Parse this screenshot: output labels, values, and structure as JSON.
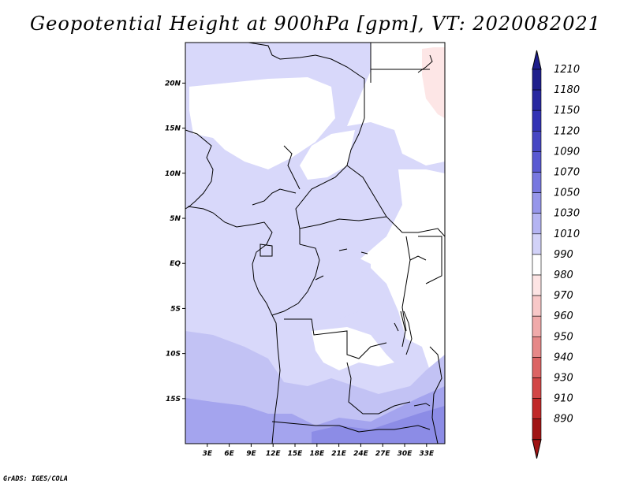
{
  "title": "Geopotential Height at 900hPa [gpm], VT: 2020082021",
  "credit": "GrADS: IGES/COLA",
  "map": {
    "lon_range": [
      0,
      35.5
    ],
    "lat_range": [
      -20,
      24.5
    ],
    "x_ticks": [
      {
        "value": 3,
        "label": "3E"
      },
      {
        "value": 6,
        "label": "6E"
      },
      {
        "value": 9,
        "label": "9E"
      },
      {
        "value": 12,
        "label": "12E"
      },
      {
        "value": 15,
        "label": "15E"
      },
      {
        "value": 18,
        "label": "18E"
      },
      {
        "value": 21,
        "label": "21E"
      },
      {
        "value": 24,
        "label": "24E"
      },
      {
        "value": 27,
        "label": "27E"
      },
      {
        "value": 30,
        "label": "30E"
      },
      {
        "value": 33,
        "label": "33E"
      }
    ],
    "y_ticks": [
      {
        "value": 20,
        "label": "20N"
      },
      {
        "value": 15,
        "label": "15N"
      },
      {
        "value": 10,
        "label": "10N"
      },
      {
        "value": 5,
        "label": "5N"
      },
      {
        "value": 0,
        "label": "EQ"
      },
      {
        "value": -5,
        "label": "5S"
      },
      {
        "value": -10,
        "label": "10S"
      },
      {
        "value": -15,
        "label": "15S"
      }
    ]
  },
  "colorbar": {
    "levels": [
      {
        "label": "1210",
        "color": "#1e1e8c"
      },
      {
        "label": "1180",
        "color": "#2828a0"
      },
      {
        "label": "1150",
        "color": "#3232b4"
      },
      {
        "label": "1120",
        "color": "#4646c3"
      },
      {
        "label": "1090",
        "color": "#5a5ad2"
      },
      {
        "label": "1070",
        "color": "#7878e0"
      },
      {
        "label": "1050",
        "color": "#9696ea"
      },
      {
        "label": "1030",
        "color": "#b4b4f2"
      },
      {
        "label": "1010",
        "color": "#d2d2f8"
      },
      {
        "label": "990",
        "color": "#ffffff"
      },
      {
        "label": "980",
        "color": "#fde4e4"
      },
      {
        "label": "970",
        "color": "#f8c8c8"
      },
      {
        "label": "960",
        "color": "#f0aaaa"
      },
      {
        "label": "950",
        "color": "#e68888"
      },
      {
        "label": "940",
        "color": "#dc6464"
      },
      {
        "label": "930",
        "color": "#d24646"
      },
      {
        "label": "910",
        "color": "#c02828"
      },
      {
        "label": "890",
        "color": "#a01414"
      }
    ],
    "top_color": "#1e1e8c",
    "bottom_color": "#a01414"
  },
  "fill_colors": {
    "white": "#ffffff",
    "level_1010": "#d8d8fa",
    "level_1030": "#c2c2f4",
    "level_1050": "#a4a4ee",
    "level_1070": "#8c8ce6",
    "pink_980": "#fde6e6"
  }
}
